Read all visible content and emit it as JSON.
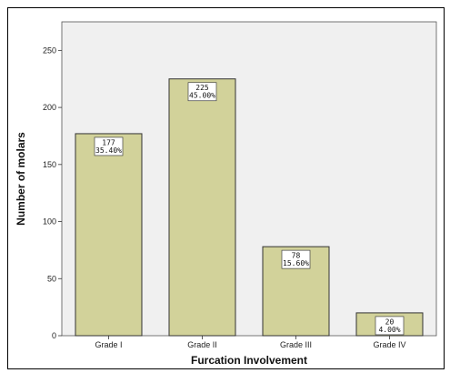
{
  "chart_data": {
    "type": "bar",
    "categories": [
      "Grade I",
      "Grade II",
      "Grade III",
      "Grade IV"
    ],
    "values": [
      177,
      225,
      78,
      20
    ],
    "percent_labels": [
      "35.40%",
      "45.00%",
      "15.60%",
      "4.00%"
    ],
    "xlabel": "Furcation Involvement",
    "ylabel": "Number of molars",
    "ylim": [
      0,
      275
    ],
    "yticks": [
      0,
      50,
      100,
      150,
      200,
      250
    ],
    "grid": false,
    "colors": {
      "bar_fill": "#d2d29a",
      "bar_stroke": "#333333",
      "plot_background": "#f0f0f0"
    }
  }
}
